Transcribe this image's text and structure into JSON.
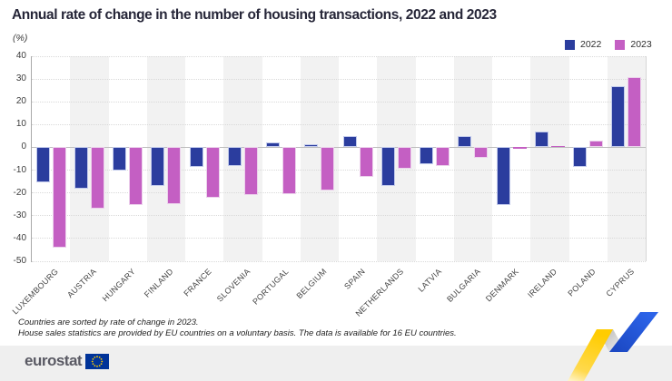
{
  "title": "Annual rate of change in the number of housing transactions, 2022 and 2023",
  "unit_label": "(%)",
  "legend": [
    {
      "label": "2022",
      "color": "#2b3d9e"
    },
    {
      "label": "2023",
      "color": "#c45fc3"
    }
  ],
  "chart_data": {
    "type": "bar",
    "title": "Annual rate of change in the number of housing transactions, 2022 and 2023",
    "ylabel": "(%)",
    "ylim": [
      -50,
      40
    ],
    "ytick_step": 10,
    "yticks": [
      40,
      30,
      20,
      10,
      0,
      -10,
      -20,
      -30,
      -40,
      -50
    ],
    "grid": "horizontal-dotted",
    "legend_position": "top-right",
    "categories": [
      "LUXEMBOURG",
      "AUSTRIA",
      "HUNGARY",
      "FINLAND",
      "FRANCE",
      "SLOVENIA",
      "PORTUGAL",
      "BELGIUM",
      "SPAIN",
      "NETHERLANDS",
      "LATVIA",
      "BULGARIA",
      "DENMARK",
      "IRELAND",
      "POLAND",
      "CYPRUS"
    ],
    "series": [
      {
        "name": "2022",
        "color": "#2b3d9e",
        "border_color": "#c3cbec",
        "values": [
          -15.5,
          -18,
          -10,
          -17,
          -8.5,
          -8,
          2,
          1.5,
          5,
          -17,
          -7.5,
          5,
          -25.5,
          7,
          -8.5,
          27
        ]
      },
      {
        "name": "2023",
        "color": "#c45fc3",
        "border_color": "#ecd2ec",
        "values": [
          -44,
          -27,
          -25.5,
          -25,
          -22,
          -21,
          -20.5,
          -19,
          -13,
          -9.5,
          -8,
          -4.5,
          -0.5,
          0.5,
          3,
          31
        ]
      }
    ],
    "band_colors": [
      "#ffffff",
      "#f2f2f2"
    ]
  },
  "notes": [
    "Countries are sorted by rate of change in 2023.",
    "House sales statistics are provided by EU countries on a voluntary basis. The data is available for 16 EU countries."
  ],
  "footer": {
    "logo_text": "eurostat",
    "flag_icon": "eu-flag-icon"
  },
  "colors": {
    "title": "#262638",
    "gridline": "#d9d9d9",
    "zero_line": "#bdbdbd",
    "axis_line": "#a9a9a9",
    "footer_band": "#efefef",
    "ribbon_yellow": "#ffcc00",
    "ribbon_blue": "#2356d6",
    "ribbon_gray": "#c8c8c8"
  }
}
